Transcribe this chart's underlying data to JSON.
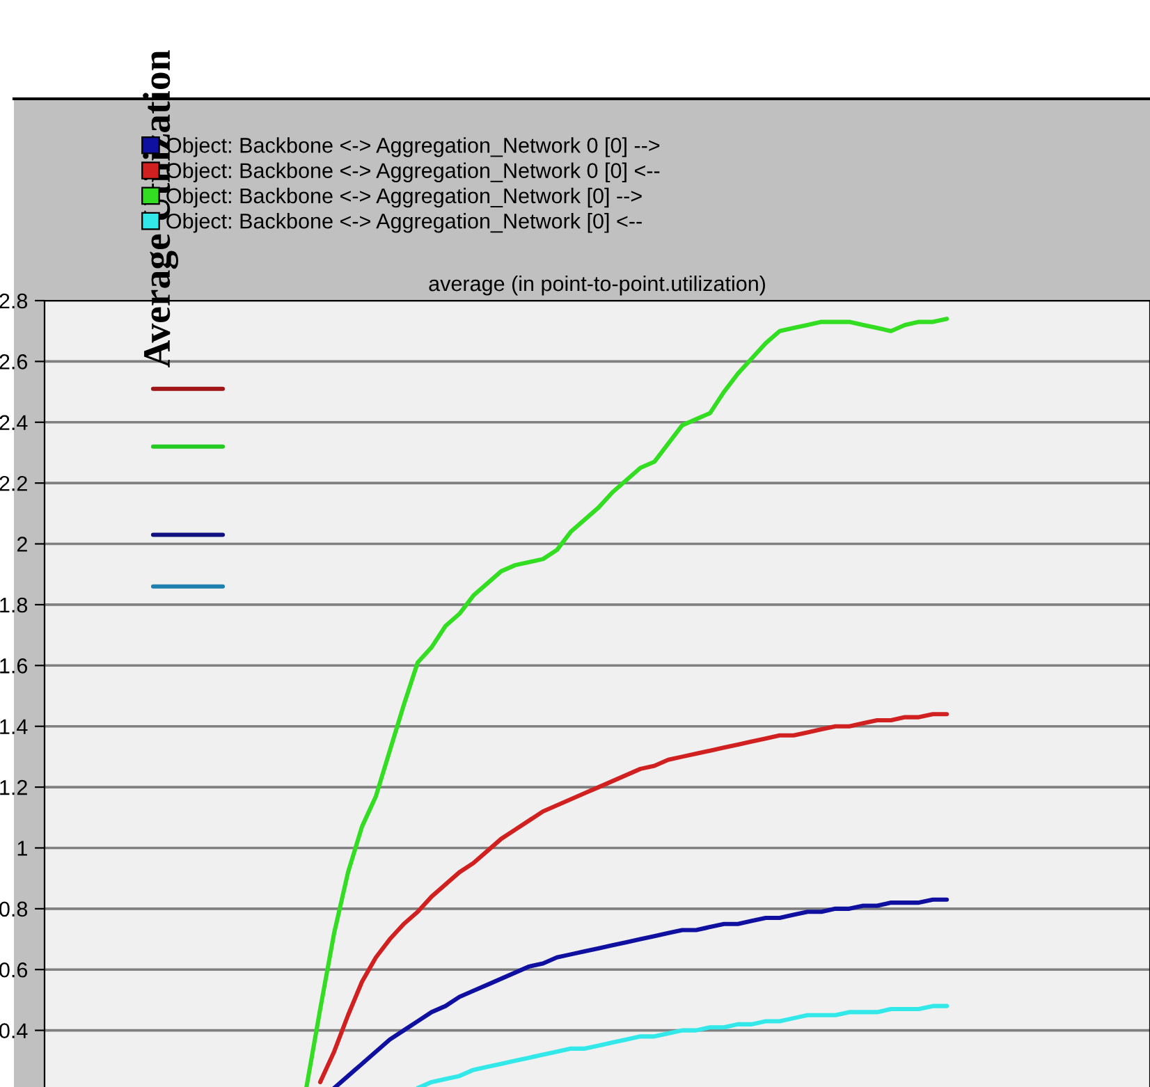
{
  "chart_data": {
    "type": "line",
    "title": "average (in point-to-point.utilization)",
    "ylabel": "Average Utilization",
    "categories": [
      null,
      null,
      null,
      null,
      null,
      null,
      null,
      null,
      null,
      null,
      null,
      null,
      null,
      null,
      null,
      null,
      null,
      null,
      null,
      null,
      null,
      null,
      null,
      null,
      null,
      null,
      null,
      null,
      null,
      null,
      null,
      null,
      null,
      null,
      null,
      null,
      null,
      null,
      null,
      null,
      null,
      null,
      null,
      null,
      null,
      null,
      null,
      null,
      null,
      null,
      null,
      null,
      null,
      null,
      null,
      null,
      null,
      null,
      null,
      null,
      null,
      null,
      null,
      null,
      null,
      null,
      null,
      null,
      null,
      null,
      null,
      null,
      null,
      null,
      null,
      null,
      null,
      null,
      null
    ],
    "ylim": [
      0.2,
      2.8
    ],
    "yticks": [
      0.4,
      0.6,
      0.8,
      1,
      1.2,
      1.4,
      1.6,
      1.8,
      2,
      2.2,
      2.4,
      2.6,
      2.8
    ],
    "grid": "y",
    "legend": "top",
    "tick_labels": "y",
    "marker": "none",
    "line_style": "solid",
    "series": [
      {
        "name": "Object: Backbone <-> Aggregation_Network 0 [0] -->",
        "color": "#1010a0",
        "values": [
          null,
          null,
          null,
          null,
          null,
          null,
          null,
          null,
          null,
          null,
          null,
          null,
          null,
          null,
          null,
          null,
          null,
          null,
          null,
          null,
          0.21,
          0.25,
          0.29,
          0.33,
          0.37,
          0.4,
          0.43,
          0.46,
          0.48,
          0.51,
          0.53,
          0.55,
          0.57,
          0.59,
          0.61,
          0.62,
          0.64,
          0.65,
          0.66,
          0.67,
          0.68,
          0.69,
          0.7,
          0.71,
          0.72,
          0.73,
          0.73,
          0.74,
          0.75,
          0.75,
          0.76,
          0.77,
          0.77,
          0.78,
          0.79,
          0.79,
          0.8,
          0.8,
          0.81,
          0.81,
          0.82,
          0.82,
          0.82,
          0.83,
          0.83,
          null,
          null,
          null,
          null,
          null,
          null,
          null,
          null,
          null,
          null,
          null,
          null,
          null,
          null
        ]
      },
      {
        "name": "Object: Backbone <-> Aggregation_Network 0 [0] <--",
        "color": "#d02020",
        "values": [
          null,
          null,
          null,
          null,
          null,
          null,
          null,
          null,
          null,
          null,
          null,
          null,
          null,
          null,
          null,
          null,
          null,
          null,
          null,
          0.23,
          0.33,
          0.45,
          0.56,
          0.64,
          0.7,
          0.75,
          0.79,
          0.84,
          0.88,
          0.92,
          0.95,
          0.99,
          1.03,
          1.06,
          1.09,
          1.12,
          1.14,
          1.16,
          1.18,
          1.2,
          1.22,
          1.24,
          1.26,
          1.27,
          1.29,
          1.3,
          1.31,
          1.32,
          1.33,
          1.34,
          1.35,
          1.36,
          1.37,
          1.37,
          1.38,
          1.39,
          1.4,
          1.4,
          1.41,
          1.42,
          1.42,
          1.43,
          1.43,
          1.44,
          1.44,
          null,
          null,
          null,
          null,
          null,
          null,
          null,
          null,
          null,
          null,
          null,
          null,
          null,
          null
        ]
      },
      {
        "name": "Object: Backbone <-> Aggregation_Network [0] -->",
        "color": "#33dd22",
        "values": [
          null,
          null,
          null,
          null,
          null,
          null,
          null,
          null,
          null,
          null,
          null,
          null,
          null,
          null,
          null,
          null,
          null,
          null,
          0.21,
          0.47,
          0.72,
          0.92,
          1.07,
          1.17,
          1.32,
          1.47,
          1.61,
          1.66,
          1.73,
          1.77,
          1.83,
          1.87,
          1.91,
          1.93,
          1.94,
          1.95,
          1.98,
          2.04,
          2.08,
          2.12,
          2.17,
          2.21,
          2.25,
          2.27,
          2.33,
          2.39,
          2.41,
          2.43,
          2.5,
          2.56,
          2.61,
          2.66,
          2.7,
          2.71,
          2.72,
          2.73,
          2.73,
          2.73,
          2.72,
          2.71,
          2.7,
          2.72,
          2.73,
          2.73,
          2.74,
          null,
          null,
          null,
          null,
          null,
          null,
          null,
          null,
          null,
          null,
          null,
          null,
          null,
          null
        ]
      },
      {
        "name": "Object: Backbone <-> Aggregation_Network [0] <--",
        "color": "#33e8e8",
        "values": [
          null,
          null,
          null,
          null,
          null,
          null,
          null,
          null,
          null,
          null,
          null,
          null,
          null,
          null,
          null,
          null,
          null,
          null,
          null,
          null,
          null,
          null,
          null,
          null,
          null,
          null,
          0.21,
          0.23,
          0.24,
          0.25,
          0.27,
          0.28,
          0.29,
          0.3,
          0.31,
          0.32,
          0.33,
          0.34,
          0.34,
          0.35,
          0.36,
          0.37,
          0.38,
          0.38,
          0.39,
          0.4,
          0.4,
          0.41,
          0.41,
          0.42,
          0.42,
          0.43,
          0.43,
          0.44,
          0.45,
          0.45,
          0.45,
          0.46,
          0.46,
          0.46,
          0.47,
          0.47,
          0.47,
          0.48,
          0.48,
          null,
          null,
          null,
          null,
          null,
          null,
          null,
          null,
          null,
          null,
          null,
          null,
          null,
          null
        ]
      },
      {
        "color": "#a01515",
        "values": [
          null,
          null,
          null,
          null,
          null,
          null,
          null,
          2.51,
          2.51,
          2.51,
          2.51,
          2.51,
          2.51,
          null,
          null,
          null,
          null,
          null,
          null,
          null,
          null,
          null,
          null,
          null,
          null,
          null,
          null,
          null,
          null,
          null,
          null,
          null,
          null,
          null,
          null,
          null,
          null,
          null,
          null,
          null,
          null,
          null,
          null,
          null,
          null,
          null,
          null,
          null,
          null,
          null,
          null,
          null,
          null,
          null,
          null,
          null,
          null,
          null,
          null,
          null,
          null,
          null,
          null,
          null,
          null,
          null,
          null,
          null,
          null,
          null,
          null,
          null,
          null,
          null,
          null,
          null,
          null,
          null,
          null
        ]
      },
      {
        "color": "#22cc22",
        "values": [
          null,
          null,
          null,
          null,
          null,
          null,
          null,
          2.32,
          2.32,
          2.32,
          2.32,
          2.32,
          2.32,
          null,
          null,
          null,
          null,
          null,
          null,
          null,
          null,
          null,
          null,
          null,
          null,
          null,
          null,
          null,
          null,
          null,
          null,
          null,
          null,
          null,
          null,
          null,
          null,
          null,
          null,
          null,
          null,
          null,
          null,
          null,
          null,
          null,
          null,
          null,
          null,
          null,
          null,
          null,
          null,
          null,
          null,
          null,
          null,
          null,
          null,
          null,
          null,
          null,
          null,
          null,
          null,
          null,
          null,
          null,
          null,
          null,
          null,
          null,
          null,
          null,
          null,
          null,
          null,
          null,
          null
        ]
      },
      {
        "color": "#101080",
        "values": [
          null,
          null,
          null,
          null,
          null,
          null,
          null,
          2.03,
          2.03,
          2.03,
          2.03,
          2.03,
          2.03,
          null,
          null,
          null,
          null,
          null,
          null,
          null,
          null,
          null,
          null,
          null,
          null,
          null,
          null,
          null,
          null,
          null,
          null,
          null,
          null,
          null,
          null,
          null,
          null,
          null,
          null,
          null,
          null,
          null,
          null,
          null,
          null,
          null,
          null,
          null,
          null,
          null,
          null,
          null,
          null,
          null,
          null,
          null,
          null,
          null,
          null,
          null,
          null,
          null,
          null,
          null,
          null,
          null,
          null,
          null,
          null,
          null,
          null,
          null,
          null,
          null,
          null,
          null,
          null,
          null,
          null
        ]
      },
      {
        "color": "#2080b0",
        "values": [
          null,
          null,
          null,
          null,
          null,
          null,
          null,
          1.86,
          1.86,
          1.86,
          1.86,
          1.86,
          1.86,
          null,
          null,
          null,
          null,
          null,
          null,
          null,
          null,
          null,
          null,
          null,
          null,
          null,
          null,
          null,
          null,
          null,
          null,
          null,
          null,
          null,
          null,
          null,
          null,
          null,
          null,
          null,
          null,
          null,
          null,
          null,
          null,
          null,
          null,
          null,
          null,
          null,
          null,
          null,
          null,
          null,
          null,
          null,
          null,
          null,
          null,
          null,
          null,
          null,
          null,
          null,
          null,
          null,
          null,
          null,
          null,
          null,
          null,
          null,
          null,
          null,
          null,
          null,
          null,
          null,
          null
        ]
      }
    ]
  }
}
